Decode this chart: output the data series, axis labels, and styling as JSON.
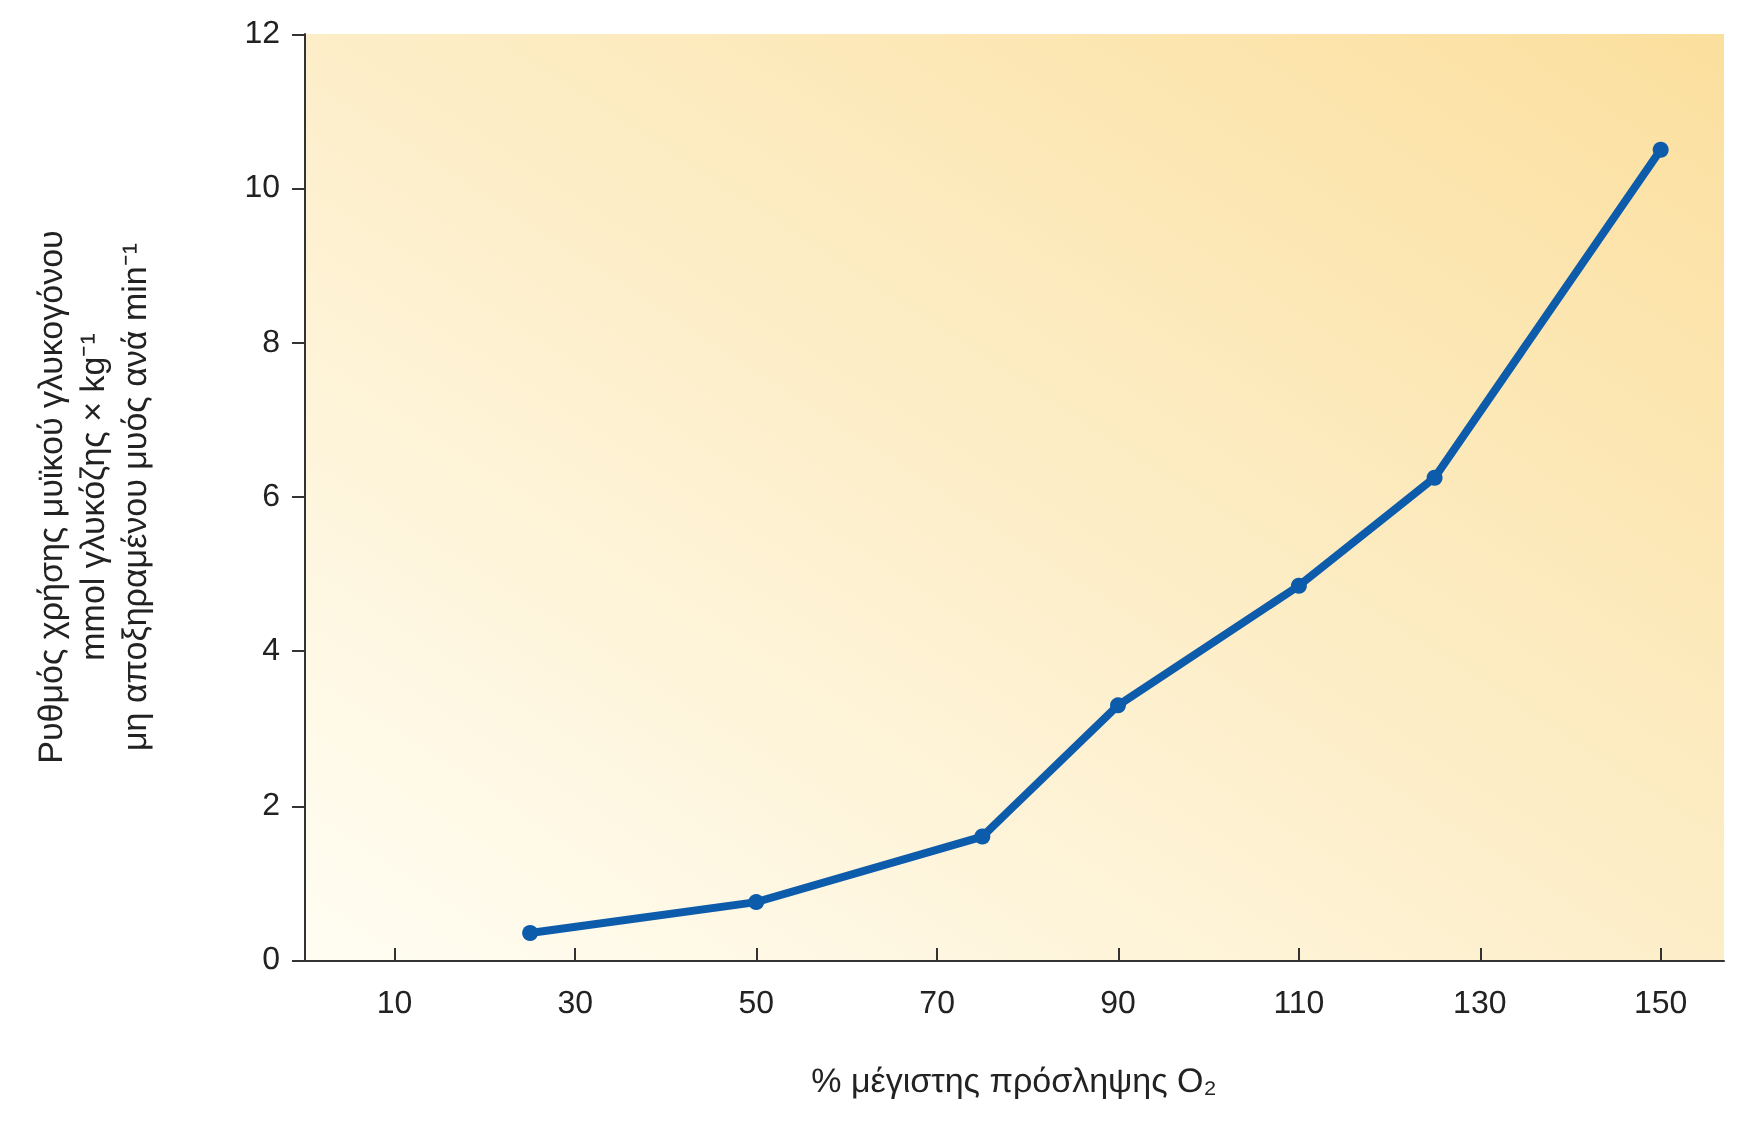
{
  "chart_data": {
    "type": "line",
    "xlabel": "% μέγιστης πρόσληψης O₂",
    "ylabel": "Ρυθμός χρήσης μυϊκού γλυκογόνου\nmmol γλυκόζης × kg⁻¹\nμη αποξηραμένου μυός ανά min⁻¹",
    "x": [
      25,
      50,
      75,
      90,
      110,
      125,
      150
    ],
    "series": [
      {
        "color": "#0d5bab",
        "values": [
          0.35,
          0.75,
          1.6,
          3.3,
          4.85,
          6.25,
          10.5
        ]
      }
    ],
    "xlim": [
      0,
      157
    ],
    "xticks": [
      10,
      30,
      50,
      70,
      90,
      110,
      130,
      150
    ],
    "ylim": [
      0,
      12
    ],
    "yticks": [
      0,
      2,
      4,
      6,
      8,
      10,
      12
    ],
    "marker": "circle",
    "line_style": "solid"
  }
}
